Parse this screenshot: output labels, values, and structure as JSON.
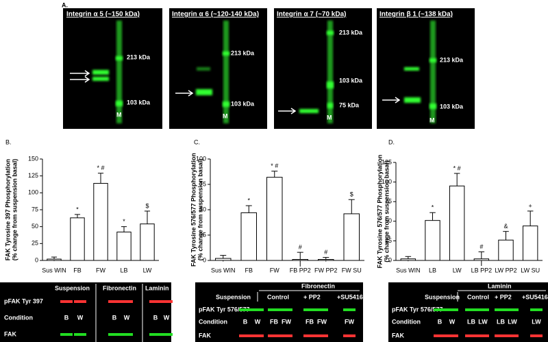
{
  "panel_a": {
    "label": "A.",
    "blots": [
      {
        "title": "Integrin α 5  (~150 kDa)",
        "markers": [
          "213 kDa",
          "103 kDa"
        ],
        "lane": "M"
      },
      {
        "title": "Integrin α 6 (~120-140 kDa)",
        "markers": [
          "213 kDa",
          "103 kDa"
        ],
        "lane": "M"
      },
      {
        "title": "Integrin α 7 (~70 kDa)",
        "markers": [
          "213 kDa",
          "103 kDa",
          "75 kDa"
        ],
        "lane": "M"
      },
      {
        "title": "Integrin β 1 (~138 kDa)",
        "markers": [
          "213 kDa",
          "103 kDa"
        ],
        "lane": "M"
      }
    ]
  },
  "chart_data": [
    {
      "type": "bar",
      "panel": "B.",
      "y_label": [
        "FAK Tyrosine 397 Phosphorylation",
        "(% change from suspension basal)"
      ],
      "categories": [
        "Sus WIN",
        "FB",
        "FW",
        "LB",
        "LW"
      ],
      "values": [
        2,
        63,
        114,
        42,
        54
      ],
      "errors": [
        3,
        5,
        15,
        8,
        19
      ],
      "annotations": [
        null,
        "*",
        "* #",
        "*",
        "$"
      ],
      "ylim": [
        0,
        150
      ],
      "yticks": [
        0,
        25,
        50,
        75,
        100,
        125,
        150
      ],
      "color": "#ffffff"
    },
    {
      "type": "bar",
      "panel": "C.",
      "y_label": [
        "FAK Tyrosine 576/577 Phosphorylation",
        "(% change from suspension basal)"
      ],
      "categories": [
        "Sus WIN",
        "FB",
        "FW",
        "FB PP2",
        "FW PP2",
        "FW SU"
      ],
      "values": [
        2,
        47,
        82,
        1,
        1,
        46
      ],
      "errors": [
        3,
        7,
        6,
        7,
        2,
        14
      ],
      "annotations": [
        null,
        "*",
        "* #",
        "#",
        "#",
        "$"
      ],
      "ylim": [
        0,
        100
      ],
      "yticks": [
        0,
        25,
        50,
        75,
        100
      ],
      "color": "#ffffff"
    },
    {
      "type": "bar",
      "panel": "D.",
      "y_label": [
        "FAK Tyrosine 576/577 Phosphorylation",
        "(% change from suspension basal)"
      ],
      "categories": [
        "Sus WIN",
        "LB",
        "LW",
        "LB PP2",
        "LW PP2",
        "LW SU"
      ],
      "values": [
        2,
        51,
        95,
        2,
        26,
        44
      ],
      "errors": [
        3,
        10,
        16,
        9,
        11,
        19
      ],
      "annotations": [
        null,
        "*",
        "* #",
        "#",
        "&",
        "+"
      ],
      "ylim": [
        0,
        125
      ],
      "yticks": [
        0,
        25,
        50,
        75,
        100,
        125
      ],
      "color": "#ffffff"
    }
  ],
  "blots_b": {
    "headers": [
      "Suspension",
      "Fibronectin",
      "Laminin"
    ],
    "rows": [
      "pFAK Tyr 397",
      "Condition",
      "FAK"
    ],
    "conditions": [
      "B",
      "W",
      "B",
      "W",
      "B",
      "W"
    ]
  },
  "blots_c": {
    "group": "Fibronectin",
    "headers": [
      "Suspension",
      "Control",
      "+ PP2",
      "+SU5416"
    ],
    "rows": [
      "pFAK Tyr 576/577",
      "Condition",
      "FAK"
    ],
    "conditions": [
      "B",
      "W",
      "FB",
      "FW",
      "FB",
      "FW",
      "FW"
    ]
  },
  "blots_d": {
    "group": "Laminin",
    "headers": [
      "Suspension",
      "Control",
      "+ PP2",
      "+SU5416"
    ],
    "rows": [
      "pFAK Tyr 576/577",
      "Condition",
      "FAK"
    ],
    "conditions": [
      "B",
      "W",
      "LB",
      "LW",
      "LB",
      "LW",
      "LW"
    ]
  }
}
